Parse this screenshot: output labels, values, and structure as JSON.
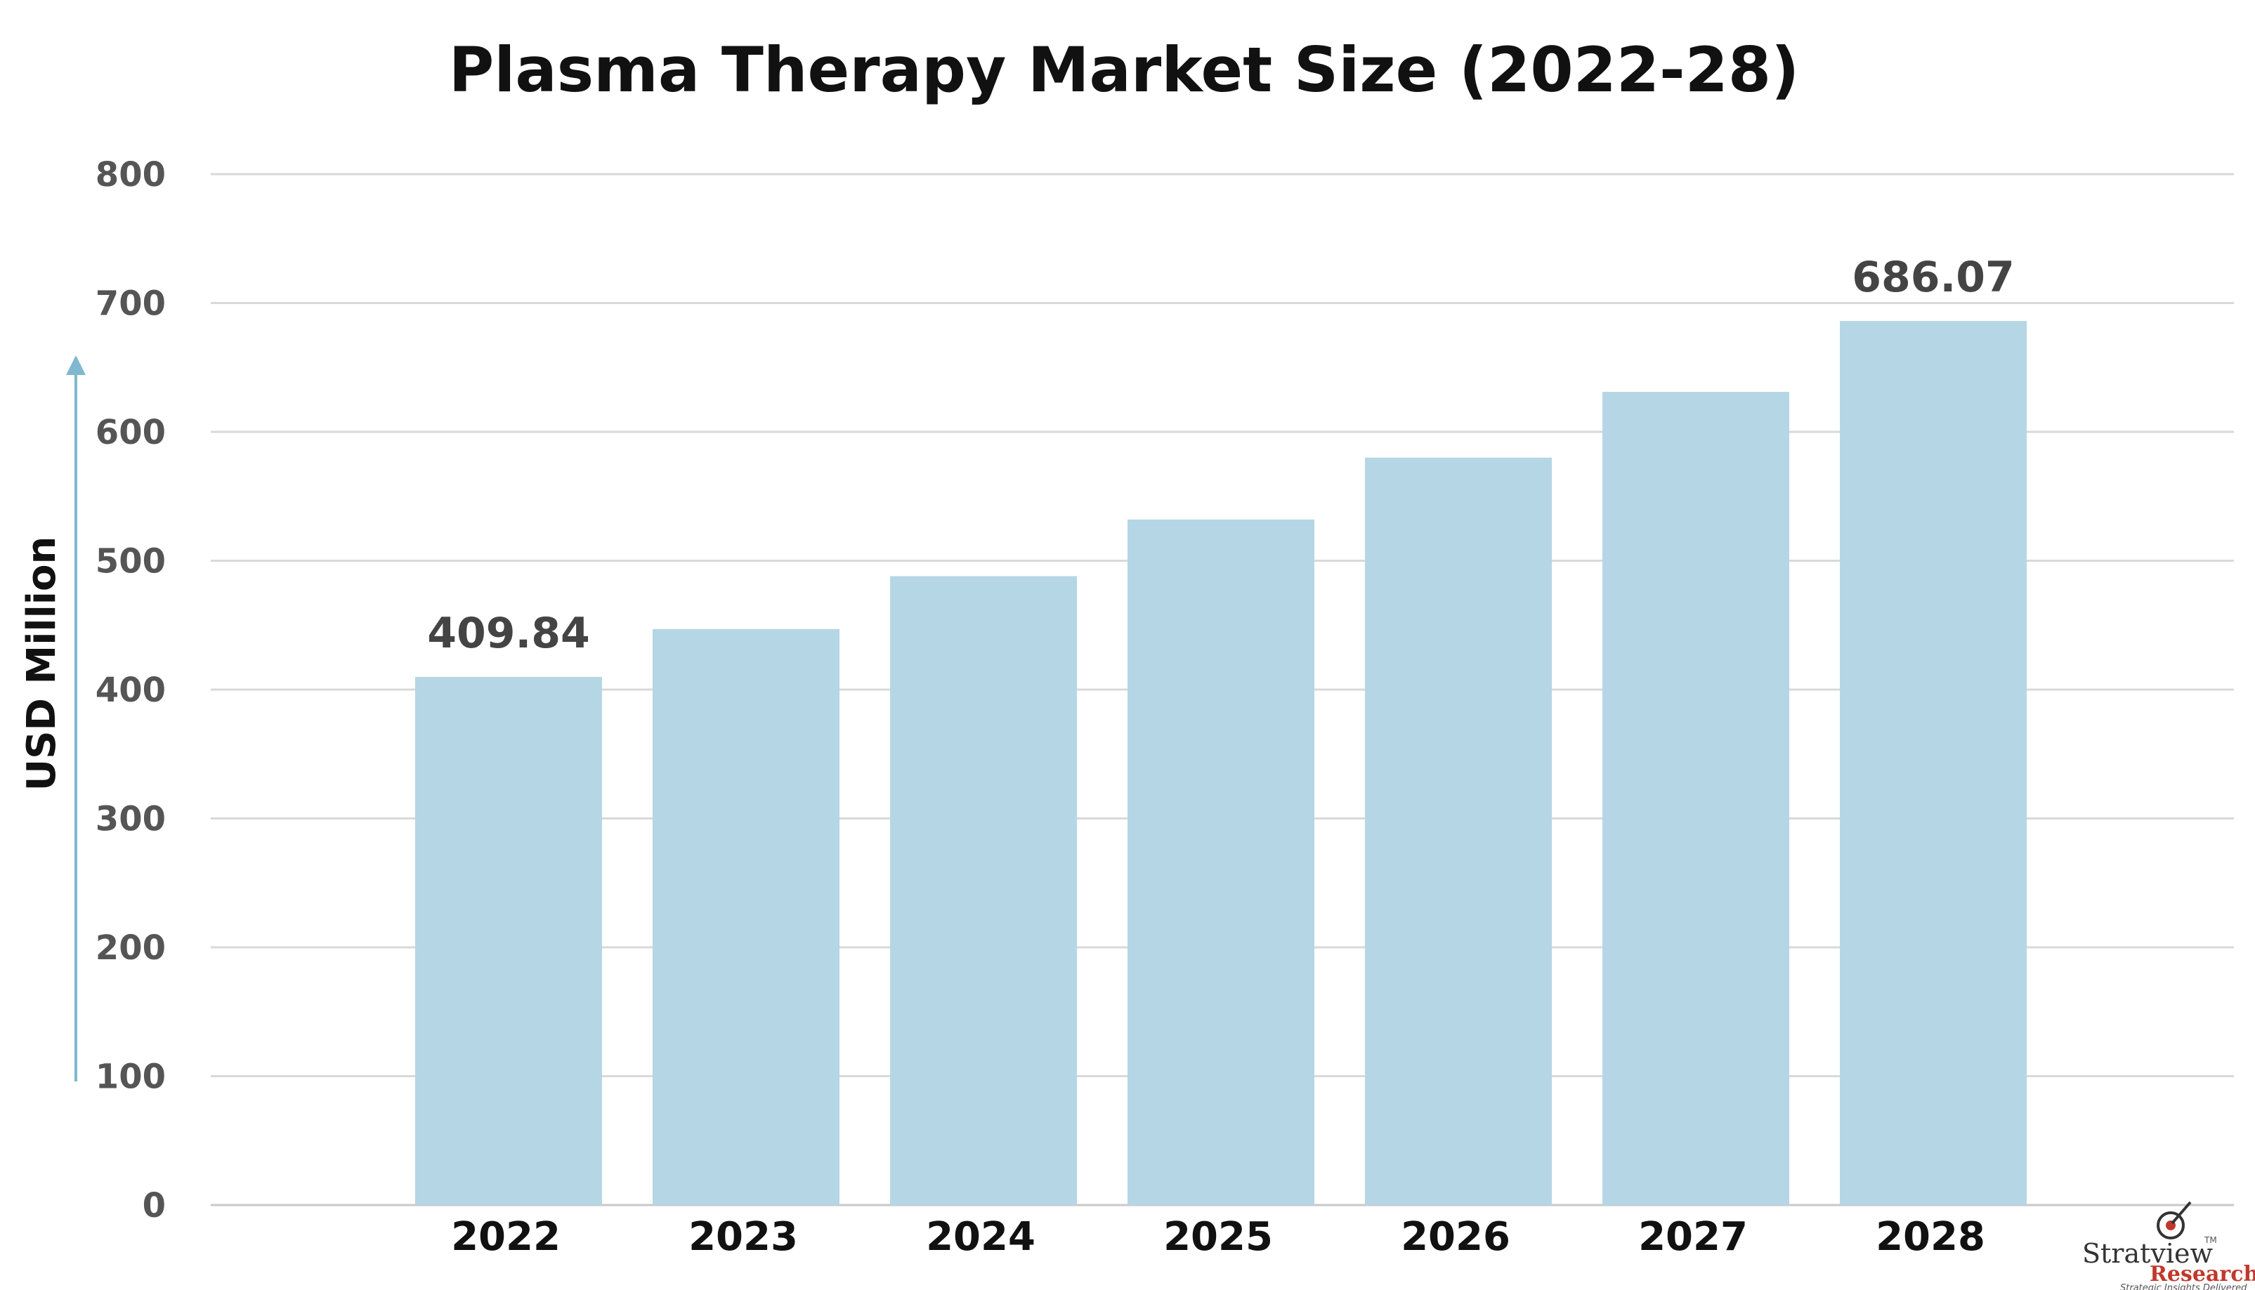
{
  "chart_data": {
    "type": "bar",
    "title": "Plasma Therapy Market Size (2022-28)",
    "ylabel": "USD Million",
    "xlabel": "",
    "categories": [
      "2022",
      "2023",
      "2024",
      "2025",
      "2026",
      "2027",
      "2028"
    ],
    "values": [
      409.84,
      447,
      488,
      532,
      580,
      631,
      686.07
    ],
    "data_labels": [
      {
        "category": "2022",
        "text": "409.84"
      },
      {
        "category": "2028",
        "text": "686.07"
      }
    ],
    "ylim": [
      0,
      800
    ],
    "yticks": [
      "0",
      "100",
      "200",
      "300",
      "400",
      "500",
      "600",
      "700",
      "800"
    ],
    "grid": true,
    "bar_color": "#b5d6e5",
    "axis_arrow_color": "#7fb8cf"
  },
  "logo": {
    "name": "Stratview",
    "tm": "TM",
    "sub": "Research",
    "tagline": "Strategic Insights Delivered"
  }
}
